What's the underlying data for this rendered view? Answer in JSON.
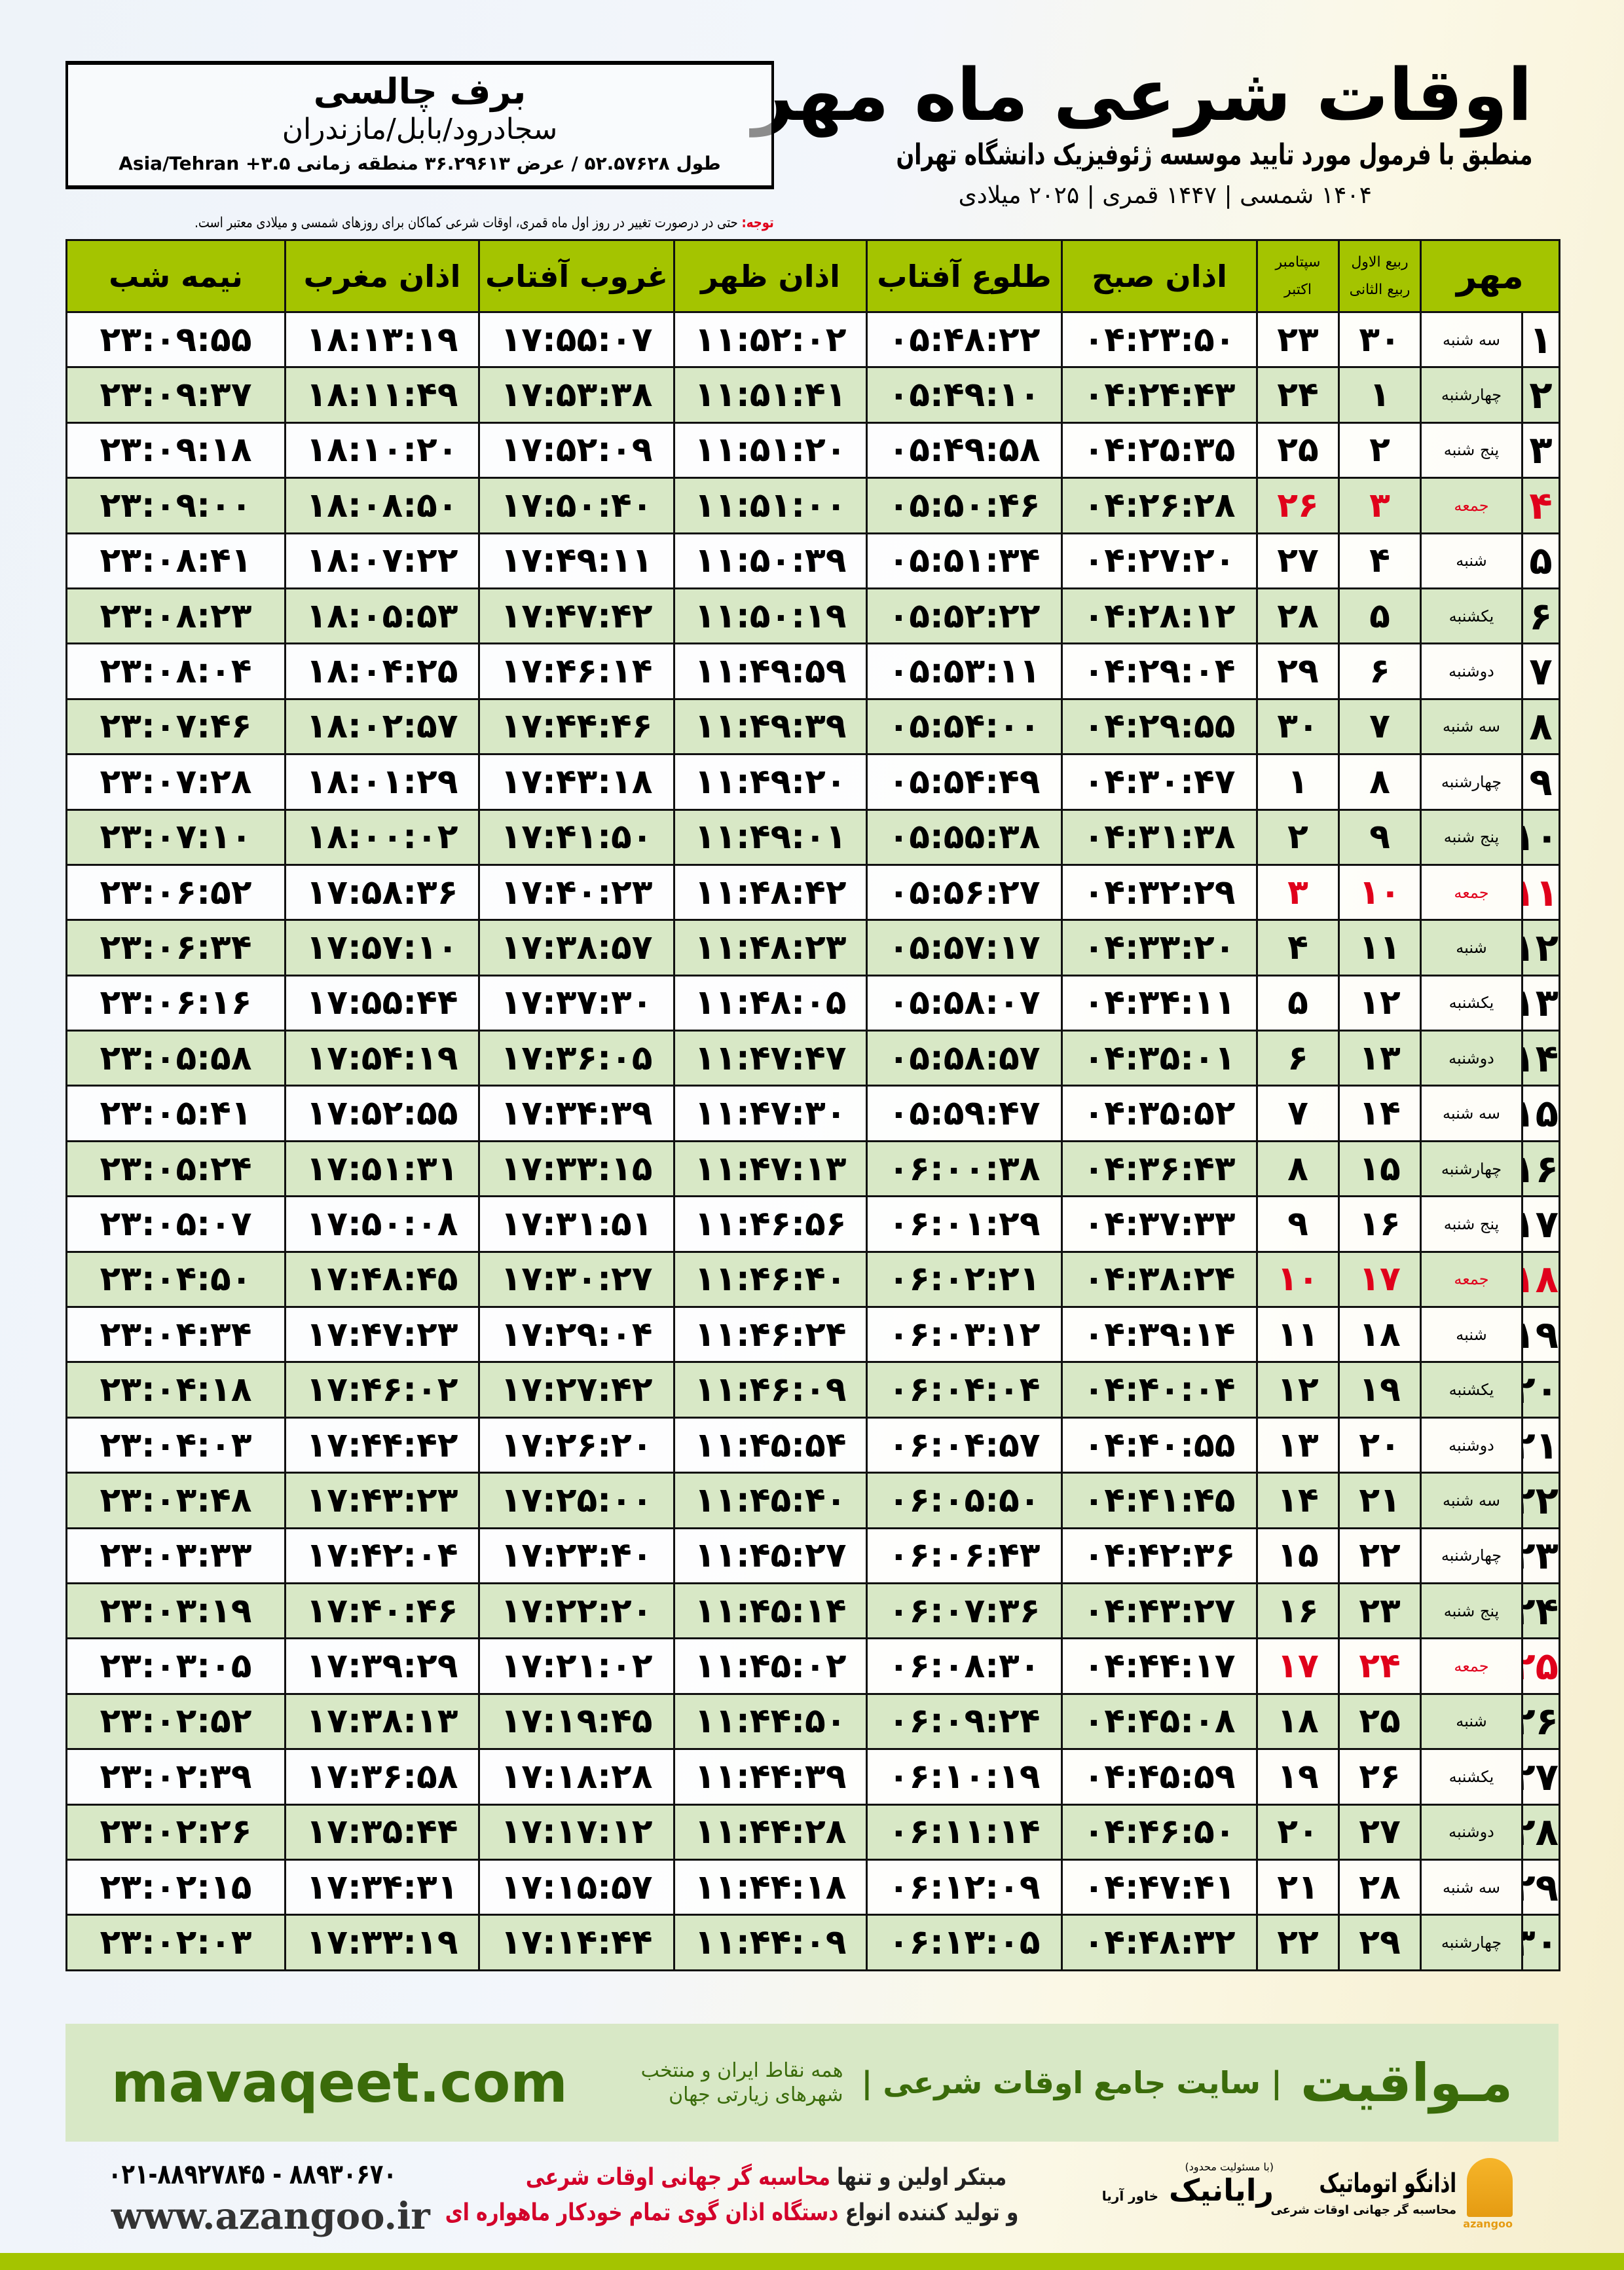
{
  "header": {
    "title": "اوقات شرعی ماه مهر",
    "subtitle": "منطبق با فرمول مورد تایید موسسه ژئوفیزیک دانشگاه تهران",
    "years": "۱۴۰۴ شمسی | ۱۴۴۷ قمری | ۲۰۲۵ میلادی"
  },
  "location": {
    "name": "برف چالسی",
    "region": "سجادرود/بابل/مازندران",
    "coords": "طول ۵۲.۵۷۶۲۸ / عرض ۳۶.۲۹۶۱۳ منطقه زمانی ۳.۵+ Asia/Tehran"
  },
  "note": {
    "label": "توجه:",
    "text": " حتی در درصورت تغییر در روز اول ماه قمری، اوقات شرعی کماکان برای روزهای شمسی و میلادی معتبر است."
  },
  "table": {
    "headers": {
      "month": "مهر",
      "rabi1": "ربیع الاول",
      "rabi2": "ربیع الثانی",
      "sep": "سپتامبر",
      "oct": "اکتبر",
      "fajr": "اذان صبح",
      "sunrise": "طلوع آفتاب",
      "dhuhr": "اذان ظهر",
      "sunset": "غروب آفتاب",
      "maghrib": "اذان مغرب",
      "midnight": "نیمه شب"
    },
    "friday_color": "#e0001b",
    "header_color": "#a4c400",
    "alt_row_color": "#d8e8c6",
    "rows": [
      [
        "۱",
        "سه شنبه",
        "۳۰",
        "۲۳",
        "۰۴:۲۳:۵۰",
        "۰۵:۴۸:۲۲",
        "۱۱:۵۲:۰۲",
        "۱۷:۵۵:۰۷",
        "۱۸:۱۳:۱۹",
        "۲۳:۰۹:۵۵"
      ],
      [
        "۲",
        "چهارشنبه",
        "۱",
        "۲۴",
        "۰۴:۲۴:۴۳",
        "۰۵:۴۹:۱۰",
        "۱۱:۵۱:۴۱",
        "۱۷:۵۳:۳۸",
        "۱۸:۱۱:۴۹",
        "۲۳:۰۹:۳۷"
      ],
      [
        "۳",
        "پنج شنبه",
        "۲",
        "۲۵",
        "۰۴:۲۵:۳۵",
        "۰۵:۴۹:۵۸",
        "۱۱:۵۱:۲۰",
        "۱۷:۵۲:۰۹",
        "۱۸:۱۰:۲۰",
        "۲۳:۰۹:۱۸"
      ],
      [
        "۴",
        "جمعه",
        "۳",
        "۲۶",
        "۰۴:۲۶:۲۸",
        "۰۵:۵۰:۴۶",
        "۱۱:۵۱:۰۰",
        "۱۷:۵۰:۴۰",
        "۱۸:۰۸:۵۰",
        "۲۳:۰۹:۰۰"
      ],
      [
        "۵",
        "شنبه",
        "۴",
        "۲۷",
        "۰۴:۲۷:۲۰",
        "۰۵:۵۱:۳۴",
        "۱۱:۵۰:۳۹",
        "۱۷:۴۹:۱۱",
        "۱۸:۰۷:۲۲",
        "۲۳:۰۸:۴۱"
      ],
      [
        "۶",
        "یکشنبه",
        "۵",
        "۲۸",
        "۰۴:۲۸:۱۲",
        "۰۵:۵۲:۲۲",
        "۱۱:۵۰:۱۹",
        "۱۷:۴۷:۴۲",
        "۱۸:۰۵:۵۳",
        "۲۳:۰۸:۲۳"
      ],
      [
        "۷",
        "دوشنبه",
        "۶",
        "۲۹",
        "۰۴:۲۹:۰۴",
        "۰۵:۵۳:۱۱",
        "۱۱:۴۹:۵۹",
        "۱۷:۴۶:۱۴",
        "۱۸:۰۴:۲۵",
        "۲۳:۰۸:۰۴"
      ],
      [
        "۸",
        "سه شنبه",
        "۷",
        "۳۰",
        "۰۴:۲۹:۵۵",
        "۰۵:۵۴:۰۰",
        "۱۱:۴۹:۳۹",
        "۱۷:۴۴:۴۶",
        "۱۸:۰۲:۵۷",
        "۲۳:۰۷:۴۶"
      ],
      [
        "۹",
        "چهارشنبه",
        "۸",
        "۱",
        "۰۴:۳۰:۴۷",
        "۰۵:۵۴:۴۹",
        "۱۱:۴۹:۲۰",
        "۱۷:۴۳:۱۸",
        "۱۸:۰۱:۲۹",
        "۲۳:۰۷:۲۸"
      ],
      [
        "۱۰",
        "پنج شنبه",
        "۹",
        "۲",
        "۰۴:۳۱:۳۸",
        "۰۵:۵۵:۳۸",
        "۱۱:۴۹:۰۱",
        "۱۷:۴۱:۵۰",
        "۱۸:۰۰:۰۲",
        "۲۳:۰۷:۱۰"
      ],
      [
        "۱۱",
        "جمعه",
        "۱۰",
        "۳",
        "۰۴:۳۲:۲۹",
        "۰۵:۵۶:۲۷",
        "۱۱:۴۸:۴۲",
        "۱۷:۴۰:۲۳",
        "۱۷:۵۸:۳۶",
        "۲۳:۰۶:۵۲"
      ],
      [
        "۱۲",
        "شنبه",
        "۱۱",
        "۴",
        "۰۴:۳۳:۲۰",
        "۰۵:۵۷:۱۷",
        "۱۱:۴۸:۲۳",
        "۱۷:۳۸:۵۷",
        "۱۷:۵۷:۱۰",
        "۲۳:۰۶:۳۴"
      ],
      [
        "۱۳",
        "یکشنبه",
        "۱۲",
        "۵",
        "۰۴:۳۴:۱۱",
        "۰۵:۵۸:۰۷",
        "۱۱:۴۸:۰۵",
        "۱۷:۳۷:۳۰",
        "۱۷:۵۵:۴۴",
        "۲۳:۰۶:۱۶"
      ],
      [
        "۱۴",
        "دوشنبه",
        "۱۳",
        "۶",
        "۰۴:۳۵:۰۱",
        "۰۵:۵۸:۵۷",
        "۱۱:۴۷:۴۷",
        "۱۷:۳۶:۰۵",
        "۱۷:۵۴:۱۹",
        "۲۳:۰۵:۵۸"
      ],
      [
        "۱۵",
        "سه شنبه",
        "۱۴",
        "۷",
        "۰۴:۳۵:۵۲",
        "۰۵:۵۹:۴۷",
        "۱۱:۴۷:۳۰",
        "۱۷:۳۴:۳۹",
        "۱۷:۵۲:۵۵",
        "۲۳:۰۵:۴۱"
      ],
      [
        "۱۶",
        "چهارشنبه",
        "۱۵",
        "۸",
        "۰۴:۳۶:۴۳",
        "۰۶:۰۰:۳۸",
        "۱۱:۴۷:۱۳",
        "۱۷:۳۳:۱۵",
        "۱۷:۵۱:۳۱",
        "۲۳:۰۵:۲۴"
      ],
      [
        "۱۷",
        "پنج شنبه",
        "۱۶",
        "۹",
        "۰۴:۳۷:۳۳",
        "۰۶:۰۱:۲۹",
        "۱۱:۴۶:۵۶",
        "۱۷:۳۱:۵۱",
        "۱۷:۵۰:۰۸",
        "۲۳:۰۵:۰۷"
      ],
      [
        "۱۸",
        "جمعه",
        "۱۷",
        "۱۰",
        "۰۴:۳۸:۲۴",
        "۰۶:۰۲:۲۱",
        "۱۱:۴۶:۴۰",
        "۱۷:۳۰:۲۷",
        "۱۷:۴۸:۴۵",
        "۲۳:۰۴:۵۰"
      ],
      [
        "۱۹",
        "شنبه",
        "۱۸",
        "۱۱",
        "۰۴:۳۹:۱۴",
        "۰۶:۰۳:۱۲",
        "۱۱:۴۶:۲۴",
        "۱۷:۲۹:۰۴",
        "۱۷:۴۷:۲۳",
        "۲۳:۰۴:۳۴"
      ],
      [
        "۲۰",
        "یکشنبه",
        "۱۹",
        "۱۲",
        "۰۴:۴۰:۰۴",
        "۰۶:۰۴:۰۴",
        "۱۱:۴۶:۰۹",
        "۱۷:۲۷:۴۲",
        "۱۷:۴۶:۰۲",
        "۲۳:۰۴:۱۸"
      ],
      [
        "۲۱",
        "دوشنبه",
        "۲۰",
        "۱۳",
        "۰۴:۴۰:۵۵",
        "۰۶:۰۴:۵۷",
        "۱۱:۴۵:۵۴",
        "۱۷:۲۶:۲۰",
        "۱۷:۴۴:۴۲",
        "۲۳:۰۴:۰۳"
      ],
      [
        "۲۲",
        "سه شنبه",
        "۲۱",
        "۱۴",
        "۰۴:۴۱:۴۵",
        "۰۶:۰۵:۵۰",
        "۱۱:۴۵:۴۰",
        "۱۷:۲۵:۰۰",
        "۱۷:۴۳:۲۳",
        "۲۳:۰۳:۴۸"
      ],
      [
        "۲۳",
        "چهارشنبه",
        "۲۲",
        "۱۵",
        "۰۴:۴۲:۳۶",
        "۰۶:۰۶:۴۳",
        "۱۱:۴۵:۲۷",
        "۱۷:۲۳:۴۰",
        "۱۷:۴۲:۰۴",
        "۲۳:۰۳:۳۳"
      ],
      [
        "۲۴",
        "پنج شنبه",
        "۲۳",
        "۱۶",
        "۰۴:۴۳:۲۷",
        "۰۶:۰۷:۳۶",
        "۱۱:۴۵:۱۴",
        "۱۷:۲۲:۲۰",
        "۱۷:۴۰:۴۶",
        "۲۳:۰۳:۱۹"
      ],
      [
        "۲۵",
        "جمعه",
        "۲۴",
        "۱۷",
        "۰۴:۴۴:۱۷",
        "۰۶:۰۸:۳۰",
        "۱۱:۴۵:۰۲",
        "۱۷:۲۱:۰۲",
        "۱۷:۳۹:۲۹",
        "۲۳:۰۳:۰۵"
      ],
      [
        "۲۶",
        "شنبه",
        "۲۵",
        "۱۸",
        "۰۴:۴۵:۰۸",
        "۰۶:۰۹:۲۴",
        "۱۱:۴۴:۵۰",
        "۱۷:۱۹:۴۵",
        "۱۷:۳۸:۱۳",
        "۲۳:۰۲:۵۲"
      ],
      [
        "۲۷",
        "یکشنبه",
        "۲۶",
        "۱۹",
        "۰۴:۴۵:۵۹",
        "۰۶:۱۰:۱۹",
        "۱۱:۴۴:۳۹",
        "۱۷:۱۸:۲۸",
        "۱۷:۳۶:۵۸",
        "۲۳:۰۲:۳۹"
      ],
      [
        "۲۸",
        "دوشنبه",
        "۲۷",
        "۲۰",
        "۰۴:۴۶:۵۰",
        "۰۶:۱۱:۱۴",
        "۱۱:۴۴:۲۸",
        "۱۷:۱۷:۱۲",
        "۱۷:۳۵:۴۴",
        "۲۳:۰۲:۲۶"
      ],
      [
        "۲۹",
        "سه شنبه",
        "۲۸",
        "۲۱",
        "۰۴:۴۷:۴۱",
        "۰۶:۱۲:۰۹",
        "۱۱:۴۴:۱۸",
        "۱۷:۱۵:۵۷",
        "۱۷:۳۴:۳۱",
        "۲۳:۰۲:۱۵"
      ],
      [
        "۳۰",
        "چهارشنبه",
        "۲۹",
        "۲۲",
        "۰۴:۴۸:۳۲",
        "۰۶:۱۳:۰۵",
        "۱۱:۴۴:۰۹",
        "۱۷:۱۴:۴۴",
        "۱۷:۳۳:۱۹",
        "۲۳:۰۲:۰۳"
      ]
    ]
  },
  "banner": {
    "brand": "مـواقیت",
    "tagline": "| سایت جامع اوقات شرعی |",
    "sub": "همه نقاط ایران و منتخب شهرهای زیارتی جهان",
    "url": "mavaqeet.com"
  },
  "footer": {
    "phones": "۰۲۱-۸۸۹۲۷۸۴۵ - ۸۸۹۳۰۶۷۰",
    "url": "www.azangoo.ir",
    "promo1a": "مبتکر اولین و تنها ",
    "promo1b": "محاسبه گر جهانی اوقات شرعی",
    "promo2a": "و تولید کننده انواع ",
    "promo2b": "دستگاه اذان گوی تمام خودکار ماهواره ای",
    "rayanik_small": "(با مسئولیت محدود)",
    "rayanik": "رایانیک",
    "rayanik_side": "خاور آریا",
    "azangoo_name": "اذانگو اتوماتیک",
    "azangoo_sub": "محاسبه گر جهانی اوقات شرعی",
    "azangoo_en": "azangoo"
  }
}
